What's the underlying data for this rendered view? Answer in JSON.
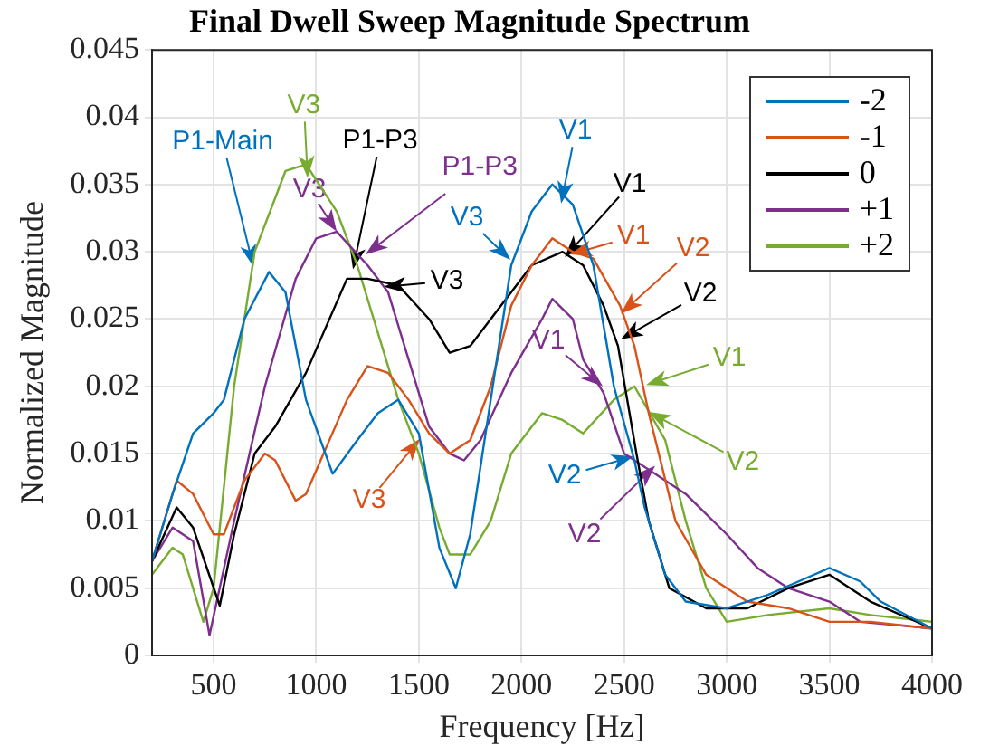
{
  "chart_data": {
    "type": "line",
    "title": "Final Dwell Sweep Magnitude Spectrum",
    "xlabel": "Frequency [Hz]",
    "ylabel": "Normalized Magnitude",
    "xlim": [
      200,
      4000
    ],
    "xticks": [
      500,
      1000,
      1500,
      2000,
      2500,
      3000,
      3500,
      4000
    ],
    "ylim": [
      0,
      0.045
    ],
    "yticks": [
      0,
      0.005,
      0.01,
      0.015,
      0.02,
      0.025,
      0.03,
      0.035,
      0.04,
      0.045
    ],
    "grid": true,
    "legend": "top right",
    "marker": "none",
    "line_style": "solid",
    "series": [
      {
        "name": "-2",
        "color": "#0072bd",
        "x": [
          200,
          300,
          400,
          500,
          550,
          650,
          770,
          850,
          950,
          1080,
          1200,
          1300,
          1400,
          1500,
          1600,
          1680,
          1750,
          1850,
          1950,
          2050,
          2150,
          2250,
          2350,
          2450,
          2550,
          2600,
          2700,
          2800,
          3000,
          3200,
          3350,
          3500,
          3650,
          3750,
          4000
        ],
        "values": [
          0.007,
          0.012,
          0.0165,
          0.018,
          0.019,
          0.025,
          0.0285,
          0.027,
          0.019,
          0.0135,
          0.016,
          0.018,
          0.019,
          0.0165,
          0.008,
          0.005,
          0.009,
          0.019,
          0.029,
          0.033,
          0.035,
          0.0335,
          0.029,
          0.02,
          0.0145,
          0.011,
          0.006,
          0.004,
          0.0035,
          0.0045,
          0.0055,
          0.0065,
          0.0055,
          0.004,
          0.002
        ]
      },
      {
        "name": "-1",
        "color": "#d95319",
        "x": [
          200,
          320,
          400,
          500,
          550,
          650,
          750,
          800,
          900,
          950,
          1050,
          1150,
          1250,
          1350,
          1450,
          1550,
          1650,
          1750,
          1850,
          1950,
          2050,
          2150,
          2250,
          2350,
          2480,
          2550,
          2620,
          2750,
          2900,
          3100,
          3300,
          3500,
          3700,
          4000
        ],
        "values": [
          0.007,
          0.013,
          0.012,
          0.009,
          0.009,
          0.013,
          0.015,
          0.0145,
          0.0115,
          0.012,
          0.0155,
          0.019,
          0.0215,
          0.021,
          0.019,
          0.0165,
          0.015,
          0.016,
          0.02,
          0.026,
          0.029,
          0.031,
          0.03,
          0.0295,
          0.026,
          0.023,
          0.018,
          0.01,
          0.006,
          0.004,
          0.0035,
          0.0025,
          0.0025,
          0.002
        ]
      },
      {
        "name": "0",
        "color": "#000000",
        "x": [
          200,
          320,
          400,
          530,
          600,
          700,
          800,
          950,
          1150,
          1250,
          1400,
          1550,
          1650,
          1750,
          1850,
          2050,
          2200,
          2300,
          2400,
          2470,
          2560,
          2620,
          2720,
          2900,
          3100,
          3300,
          3500,
          3700,
          4000
        ],
        "values": [
          0.007,
          0.011,
          0.0095,
          0.0037,
          0.009,
          0.015,
          0.017,
          0.021,
          0.028,
          0.028,
          0.0275,
          0.025,
          0.0225,
          0.023,
          0.025,
          0.029,
          0.03,
          0.029,
          0.026,
          0.023,
          0.015,
          0.01,
          0.005,
          0.0035,
          0.0035,
          0.005,
          0.006,
          0.004,
          0.002
        ]
      },
      {
        "name": "+1",
        "color": "#7e2f8e",
        "x": [
          200,
          300,
          400,
          480,
          600,
          750,
          900,
          1000,
          1100,
          1250,
          1350,
          1450,
          1550,
          1650,
          1720,
          1800,
          1950,
          2100,
          2150,
          2250,
          2300,
          2400,
          2500,
          2650,
          2800,
          3000,
          3150,
          3300,
          3500,
          3650,
          4000
        ],
        "values": [
          0.007,
          0.0095,
          0.0085,
          0.0015,
          0.01,
          0.02,
          0.028,
          0.031,
          0.0315,
          0.029,
          0.027,
          0.022,
          0.017,
          0.015,
          0.0145,
          0.016,
          0.021,
          0.025,
          0.0265,
          0.025,
          0.022,
          0.0195,
          0.015,
          0.0135,
          0.012,
          0.009,
          0.0065,
          0.005,
          0.004,
          0.0025,
          0.002
        ]
      },
      {
        "name": "+2",
        "color": "#77ac30",
        "x": [
          200,
          300,
          350,
          450,
          500,
          600,
          700,
          850,
          950,
          1100,
          1200,
          1300,
          1400,
          1500,
          1600,
          1650,
          1750,
          1850,
          1950,
          2100,
          2200,
          2300,
          2450,
          2550,
          2700,
          2800,
          2900,
          3000,
          3200,
          3500,
          3700,
          4000
        ],
        "values": [
          0.006,
          0.008,
          0.0075,
          0.0025,
          0.005,
          0.02,
          0.03,
          0.036,
          0.0365,
          0.033,
          0.029,
          0.024,
          0.019,
          0.015,
          0.0095,
          0.0075,
          0.0075,
          0.01,
          0.015,
          0.018,
          0.0175,
          0.0165,
          0.019,
          0.02,
          0.016,
          0.01,
          0.005,
          0.0025,
          0.003,
          0.0035,
          0.003,
          0.0025
        ]
      }
    ],
    "annotations": [
      {
        "text": "P1-Main",
        "x": 694,
        "y": 0.0289
      },
      {
        "text": "V3",
        "x": 958,
        "y": 0.0355
      },
      {
        "text": "P1-P3",
        "x": 1179,
        "y": 0.0287
      },
      {
        "text": "P1-P3",
        "x": 1241,
        "y": 0.0298
      },
      {
        "text": "V3",
        "x": 1100,
        "y": 0.0315
      },
      {
        "text": "V3",
        "x": 1329,
        "y": 0.0274
      },
      {
        "text": "V3",
        "x": 1946,
        "y": 0.0294
      },
      {
        "text": "V1",
        "x": 2193,
        "y": 0.0336
      },
      {
        "text": "V1",
        "x": 2211,
        "y": 0.0296
      },
      {
        "text": "V1",
        "x": 2237,
        "y": 0.0298
      },
      {
        "text": "V2",
        "x": 2484,
        "y": 0.0254
      },
      {
        "text": "V2",
        "x": 2484,
        "y": 0.0235
      },
      {
        "text": "V1",
        "x": 2396,
        "y": 0.02
      },
      {
        "text": "V1",
        "x": 2607,
        "y": 0.0201
      },
      {
        "text": "V2",
        "x": 2620,
        "y": 0.0181
      },
      {
        "text": "V2",
        "x": 2546,
        "y": 0.0148
      },
      {
        "text": "V2",
        "x": 2651,
        "y": 0.0141
      },
      {
        "text": "V3",
        "x": 1505,
        "y": 0.0161
      }
    ]
  }
}
